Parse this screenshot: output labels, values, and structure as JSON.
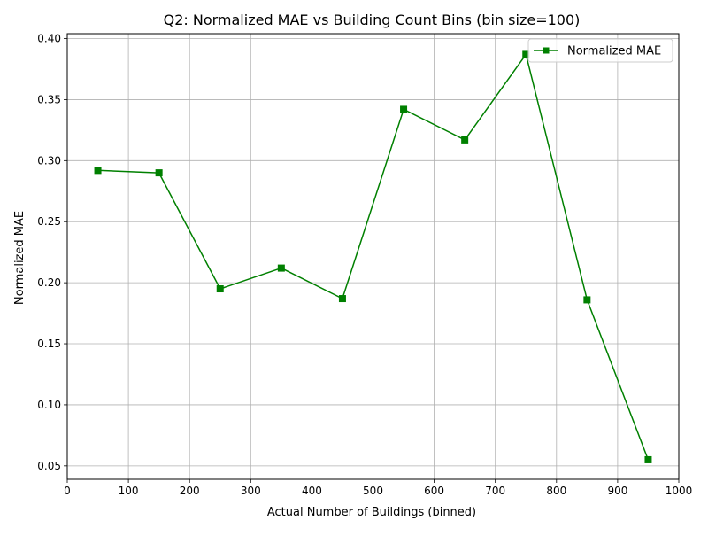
{
  "chart_data": {
    "type": "line",
    "title": "Q2: Normalized MAE vs Building Count Bins (bin size=100)",
    "xlabel": "Actual Number of Buildings (binned)",
    "ylabel": "Normalized MAE",
    "xlim": [
      0,
      1000
    ],
    "ylim": [
      0.039,
      0.404
    ],
    "x_ticks": [
      0,
      100,
      200,
      300,
      400,
      500,
      600,
      700,
      800,
      900,
      1000
    ],
    "x_tick_labels": [
      "0",
      "100",
      "200",
      "300",
      "400",
      "500",
      "600",
      "700",
      "800",
      "900",
      "1000"
    ],
    "y_ticks": [
      0.05,
      0.1,
      0.15,
      0.2,
      0.25,
      0.3,
      0.35,
      0.4
    ],
    "y_tick_labels": [
      "0.05",
      "0.10",
      "0.15",
      "0.20",
      "0.25",
      "0.30",
      "0.35",
      "0.40"
    ],
    "grid": true,
    "legend_position": "top-right",
    "series": [
      {
        "name": "Normalized MAE",
        "color": "#008000",
        "marker": "square",
        "x": [
          50,
          150,
          250,
          350,
          450,
          550,
          650,
          750,
          850,
          950
        ],
        "values": [
          0.292,
          0.29,
          0.195,
          0.212,
          0.187,
          0.342,
          0.317,
          0.387,
          0.186,
          0.055
        ]
      }
    ]
  }
}
